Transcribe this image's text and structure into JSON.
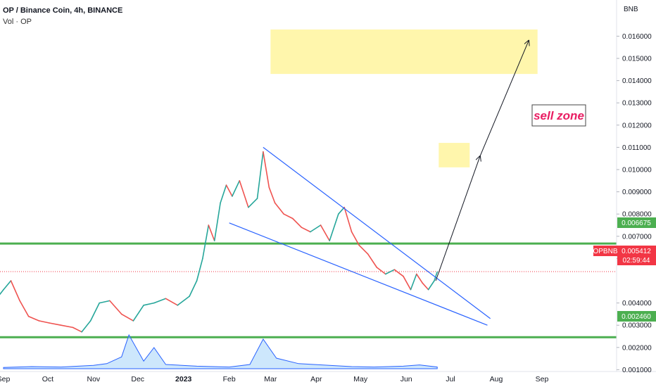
{
  "header": {
    "title": "OP / Binance Coin, 4h, BINANCE",
    "volume_label": "Vol · OP"
  },
  "colors": {
    "up": "#26a69a",
    "down": "#ef5350",
    "trendline": "#2962ff",
    "support": "#4caf50",
    "zone": "#fff59d",
    "price_tag": "#f23645",
    "volume": "#2962ff"
  },
  "chart_data": {
    "type": "line",
    "pair": "OPBNB",
    "y_axis_unit": "BNB",
    "ylim": [
      0,
      0.0165
    ],
    "y_ticks": [
      "0.016000",
      "0.015000",
      "0.014000",
      "0.013000",
      "0.012000",
      "0.011000",
      "0.010000",
      "0.009000",
      "0.008000",
      "0.007000",
      "0.006000",
      "0.004000",
      "0.003000",
      "0.002000",
      "0.001000"
    ],
    "y_tick_values": [
      0.016,
      0.015,
      0.014,
      0.013,
      0.012,
      0.011,
      0.01,
      0.009,
      0.008,
      0.007,
      0.006,
      0.004,
      0.003,
      0.002,
      0.001
    ],
    "x_ticks": [
      "Sep",
      "Oct",
      "Nov",
      "Dec",
      "2023",
      "Feb",
      "Mar",
      "Apr",
      "May",
      "Jun",
      "Jul",
      "Aug",
      "Sep"
    ],
    "x_tick_dates": [
      "2022-09-01",
      "2022-10-01",
      "2022-11-01",
      "2022-12-01",
      "2023-01-01",
      "2023-02-01",
      "2023-03-01",
      "2023-04-01",
      "2023-05-01",
      "2023-06-01",
      "2023-07-01",
      "2023-08-01",
      "2023-09-01"
    ],
    "price_series": {
      "dates": [
        "2022-08-25",
        "2022-09-01",
        "2022-09-06",
        "2022-09-12",
        "2022-09-18",
        "2022-09-25",
        "2022-10-02",
        "2022-10-10",
        "2022-10-18",
        "2022-10-24",
        "2022-10-30",
        "2022-11-05",
        "2022-11-12",
        "2022-11-20",
        "2022-11-28",
        "2022-12-05",
        "2022-12-12",
        "2022-12-20",
        "2022-12-28",
        "2023-01-05",
        "2023-01-10",
        "2023-01-14",
        "2023-01-18",
        "2023-01-22",
        "2023-01-26",
        "2023-01-30",
        "2023-02-03",
        "2023-02-08",
        "2023-02-14",
        "2023-02-20",
        "2023-02-24",
        "2023-02-28",
        "2023-03-04",
        "2023-03-10",
        "2023-03-16",
        "2023-03-22",
        "2023-03-28",
        "2023-04-04",
        "2023-04-10",
        "2023-04-16",
        "2023-04-20",
        "2023-04-25",
        "2023-04-30",
        "2023-05-06",
        "2023-05-12",
        "2023-05-18",
        "2023-05-24",
        "2023-05-30",
        "2023-06-04",
        "2023-06-08",
        "2023-06-12",
        "2023-06-16",
        "2023-06-20",
        "2023-06-22"
      ],
      "values": [
        0.004,
        0.0046,
        0.005,
        0.0041,
        0.0034,
        0.0032,
        0.0031,
        0.003,
        0.0029,
        0.0027,
        0.0032,
        0.004,
        0.0041,
        0.0035,
        0.0032,
        0.0039,
        0.004,
        0.0042,
        0.0039,
        0.0043,
        0.005,
        0.006,
        0.0075,
        0.0068,
        0.0085,
        0.0093,
        0.0088,
        0.0095,
        0.0083,
        0.0087,
        0.0108,
        0.0092,
        0.0085,
        0.008,
        0.0078,
        0.0074,
        0.0072,
        0.0075,
        0.0068,
        0.008,
        0.0083,
        0.0072,
        0.0066,
        0.0062,
        0.0056,
        0.0053,
        0.0055,
        0.0052,
        0.0046,
        0.0053,
        0.0049,
        0.0046,
        0.005,
        0.0054
      ]
    },
    "volume_series": {
      "dates": [
        "2022-09-01",
        "2022-09-20",
        "2022-10-10",
        "2022-11-01",
        "2022-11-10",
        "2022-11-20",
        "2022-11-25",
        "2022-12-05",
        "2022-12-12",
        "2022-12-20",
        "2023-01-10",
        "2023-02-01",
        "2023-02-15",
        "2023-02-24",
        "2023-03-05",
        "2023-03-20",
        "2023-04-10",
        "2023-04-25",
        "2023-05-10",
        "2023-05-30",
        "2023-06-10",
        "2023-06-22"
      ],
      "values": [
        3e-05,
        5e-05,
        4e-05,
        8e-05,
        0.00012,
        0.00028,
        0.0008,
        0.00018,
        0.0005,
        0.0001,
        6e-05,
        4e-05,
        0.0001,
        0.0007,
        0.00025,
        0.00012,
        8e-05,
        5e-05,
        4e-05,
        6e-05,
        9e-05,
        4e-05
      ]
    },
    "price_tag": {
      "label": "OPBNB",
      "value": "0.005412",
      "countdown": "02:59:44",
      "y": 0.005412
    },
    "support_lines": [
      {
        "value": 0.006675,
        "label": "0.006675"
      },
      {
        "value": 0.00246,
        "label": "0.002460"
      }
    ],
    "trendlines": [
      {
        "from": [
          "2023-02-24",
          0.011
        ],
        "to": [
          "2023-07-28",
          0.0033
        ]
      },
      {
        "from": [
          "2023-02-01",
          0.0076
        ],
        "to": [
          "2023-07-26",
          0.003
        ]
      }
    ],
    "zones": [
      {
        "x0": "2023-03-01",
        "x1": "2023-08-29",
        "y0": 0.0143,
        "y1": 0.0163
      },
      {
        "x0": "2023-06-23",
        "x1": "2023-07-14",
        "y0": 0.0101,
        "y1": 0.0112
      }
    ],
    "projection_arrow": {
      "points": [
        [
          "2023-06-21",
          0.005
        ],
        [
          "2023-07-21",
          0.0106
        ],
        [
          "2023-08-23",
          0.0158
        ]
      ]
    },
    "annotation": {
      "text": "sell zone",
      "at": [
        "2023-08-06",
        0.0117
      ]
    }
  }
}
